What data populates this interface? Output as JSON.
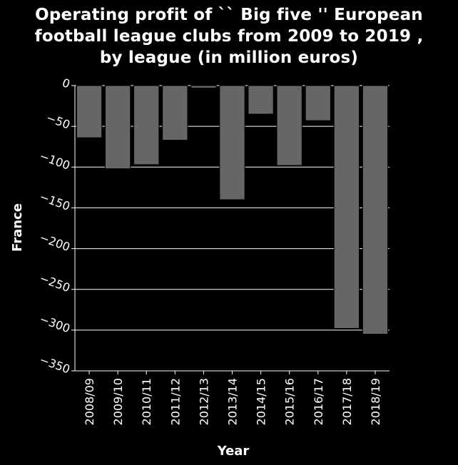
{
  "chart_data": {
    "type": "bar",
    "title_lines": [
      "Operating profit of `` Big five '' European",
      "football league clubs from 2009 to 2019 ,",
      "by league (in million euros)"
    ],
    "xlabel": "Year",
    "ylabel": "France",
    "categories": [
      "2008/09",
      "2009/10",
      "2010/11",
      "2011/12",
      "2012/13",
      "2013/14",
      "2014/15",
      "2015/16",
      "2016/17",
      "2017/18",
      "2018/19"
    ],
    "values": [
      -64,
      -102,
      -97,
      -67,
      -3,
      -140,
      -35,
      -98,
      -43,
      -298,
      -305
    ],
    "ylim": [
      -350,
      0
    ],
    "yticks": [
      0,
      -50,
      -100,
      -150,
      -200,
      -250,
      -300,
      -350
    ],
    "ytick_labels": [
      "0",
      "−50",
      "−100",
      "−150",
      "−200",
      "−250",
      "−300",
      "−350"
    ],
    "grid": true,
    "colors": {
      "background": "#000000",
      "bar": "#666666",
      "grid": "#ffffff",
      "text": "#ffffff"
    }
  }
}
